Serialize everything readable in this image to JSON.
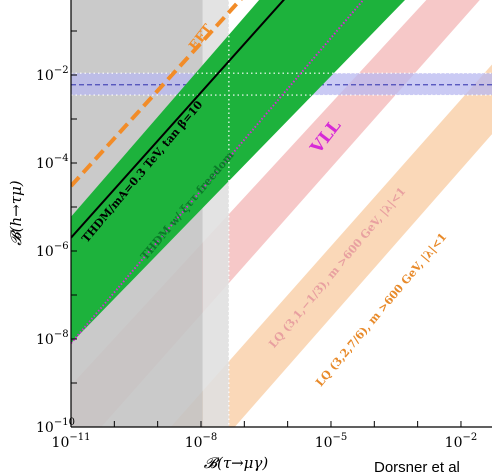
{
  "chart_data": {
    "type": "area",
    "x_scale": "log",
    "y_scale": "log",
    "xlim": [
      1e-11,
      1
    ],
    "ylim": [
      1e-10,
      1
    ],
    "xlabel": "𝓑(τ→μγ)",
    "ylabel": "𝓑(h→τμ)",
    "x_ticks": [
      {
        "value": 1e-11,
        "base": "10",
        "exp": "−11"
      },
      {
        "value": 1e-08,
        "base": "10",
        "exp": "−8"
      },
      {
        "value": 1e-05,
        "base": "10",
        "exp": "−5"
      },
      {
        "value": 0.01,
        "base": "10",
        "exp": "−2"
      }
    ],
    "y_ticks": [
      {
        "value": 1e-10,
        "base": "10",
        "exp": "−10"
      },
      {
        "value": 1e-08,
        "base": "10",
        "exp": "−8"
      },
      {
        "value": 1e-06,
        "base": "10",
        "exp": "−6"
      },
      {
        "value": 0.0001,
        "base": "10",
        "exp": "−4"
      },
      {
        "value": 0.01,
        "base": "10",
        "exp": "−2"
      }
    ],
    "excluded_regions": [
      {
        "x_min": 1e-11,
        "x_max": 1.1e-08,
        "color": "#c4c4c4"
      },
      {
        "x_min": 1.1e-08,
        "x_max": 4.4e-08,
        "color": "#e0e0e0"
      }
    ],
    "horizontal_band": {
      "y_center": 0.006,
      "y_low": 0.0035,
      "y_high": 0.011,
      "color": "#b8b8f0",
      "line_color": "#4a4ab8"
    },
    "dotted_reference": {
      "x": 4.4e-08,
      "y_low": 0.0035,
      "y_high": 0.011,
      "color": "#ffffff"
    },
    "series": [
      {
        "name": "THDM w/ ξττ freedom",
        "kind": "band",
        "color": "#1db23c",
        "upper": [
          [
            1e-11,
            6e-06
          ],
          [
            4e-07,
            1.0
          ]
        ],
        "lower": [
          [
            1e-11,
            8e-09
          ],
          [
            0.001,
            1.0
          ]
        ]
      },
      {
        "name": "THDM/mA=0.3 TeV, tan β=10",
        "kind": "line",
        "color": "#000000",
        "points": [
          [
            1e-11,
            2e-06
          ],
          [
            1.5e-06,
            1.0
          ]
        ]
      },
      {
        "name": "EFT",
        "kind": "dashed",
        "color": "#f28c28",
        "points": [
          [
            1e-11,
            3e-05
          ],
          [
            1.5e-07,
            1.0
          ]
        ]
      },
      {
        "name": "VLL",
        "kind": "dotted",
        "color": "#d62ad6",
        "points": [
          [
            1e-11,
            8e-09
          ],
          [
            0.0001,
            1.0
          ]
        ]
      },
      {
        "name": "LQ (3,1,−1/3), m >600 GeV, |λ|<1",
        "kind": "band",
        "color": "#f6c8c8",
        "upper": [
          [
            1.3e-12,
            1e-10
          ],
          [
            0.003,
            1.0
          ]
        ],
        "lower": [
          [
            5e-11,
            1e-10
          ],
          [
            0.05,
            1.0
          ]
        ]
      },
      {
        "name": "LQ (3,2,7/6), m >600 GeV, |λ|<1",
        "kind": "band",
        "color": "#fad8b8",
        "upper": [
          [
            2e-09,
            1e-10
          ],
          [
            2.0,
            1.0
          ]
        ],
        "lower": [
          [
            6e-08,
            1e-10
          ],
          [
            50.0,
            1.0
          ]
        ]
      }
    ],
    "annotations": [
      {
        "text": "EFT",
        "series": "EFT"
      },
      {
        "text": "THDM/mA=0.3 TeV, tan β=10",
        "series": "THDM/mA=0.3 TeV, tan β=10"
      },
      {
        "text": "THDM w/ ξττ freedom",
        "series": "THDM w/ ξττ freedom"
      },
      {
        "text": "VLL",
        "series": "VLL"
      },
      {
        "text": "LQ (3,1,−1/3), m >600 GeV, |λ|<1",
        "series": "LQ (3,1,−1/3), m >600 GeV, |λ|<1"
      },
      {
        "text": "LQ (3,2,7/6), m >600 GeV, |λ|<1",
        "series": "LQ (3,2,7/6), m >600 GeV, |λ|<1"
      }
    ],
    "grid": false,
    "legend": "none"
  },
  "credit": "Dorsner et al"
}
